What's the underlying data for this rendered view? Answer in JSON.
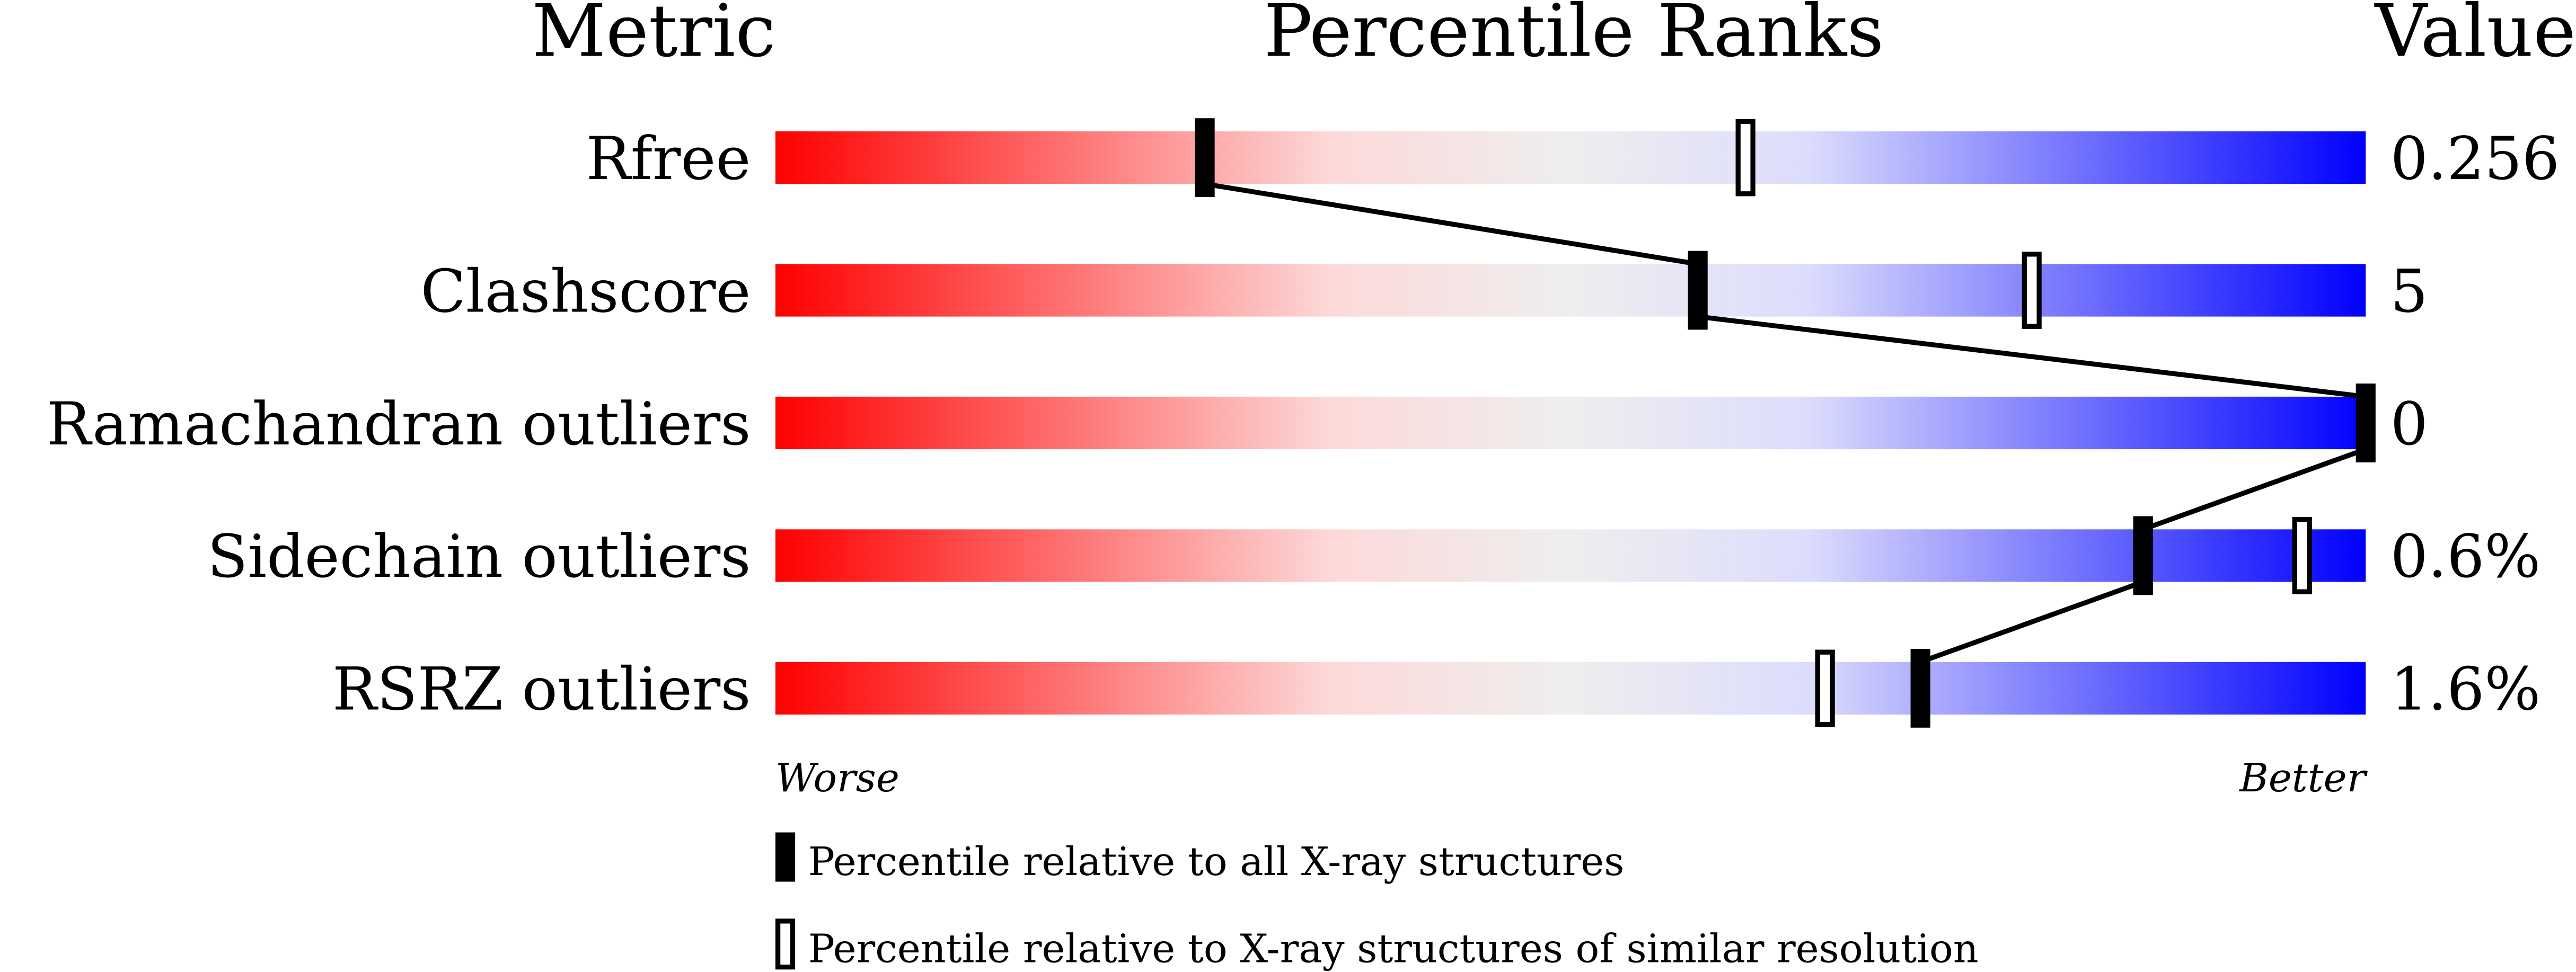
{
  "chart_data": {
    "type": "bar",
    "headers": {
      "metric": "Metric",
      "ranks": "Percentile Ranks",
      "value": "Value"
    },
    "axis": {
      "left_label": "Worse",
      "right_label": "Better",
      "range": [
        0,
        100
      ]
    },
    "gradient_colors": [
      "#ff0000",
      "#fdd9d9",
      "#eeeeee",
      "#dcdcfd",
      "#0000ff"
    ],
    "rows": [
      {
        "metric": "Rfree",
        "value": "0.256",
        "percentile_all": 27,
        "percentile_similar": 61
      },
      {
        "metric": "Clashscore",
        "value": "5",
        "percentile_all": 58,
        "percentile_similar": 79
      },
      {
        "metric": "Ramachandran outliers",
        "value": "0",
        "percentile_all": 100,
        "percentile_similar": null
      },
      {
        "metric": "Sidechain outliers",
        "value": "0.6%",
        "percentile_all": 86,
        "percentile_similar": 96
      },
      {
        "metric": "RSRZ outliers",
        "value": "1.6%",
        "percentile_all": 72,
        "percentile_similar": 66
      }
    ],
    "legend": {
      "all": "Percentile relative to all X-ray structures",
      "similar": "Percentile relative to X-ray structures of similar resolution"
    }
  }
}
